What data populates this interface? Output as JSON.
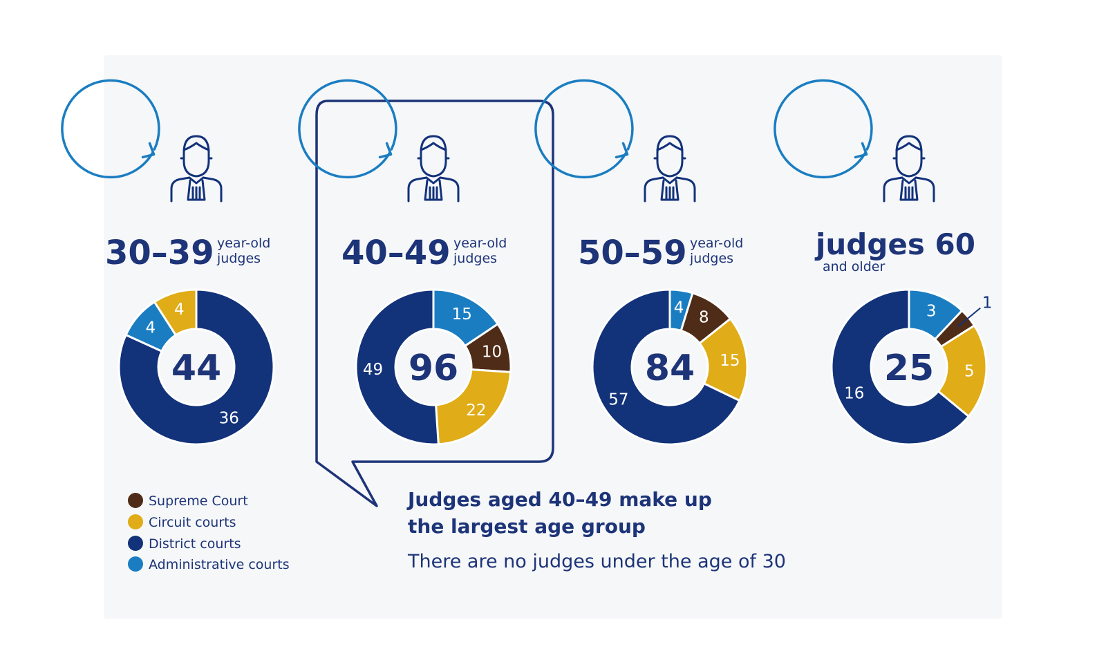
{
  "colors": {
    "supreme": "#4f2c17",
    "circuit": "#e0ac17",
    "district": "#12327a",
    "administrative": "#1a7dc2",
    "text": "#1d3478",
    "icon": "#1a7dc2"
  },
  "legend": [
    {
      "key": "supreme",
      "label": "Supreme Court"
    },
    {
      "key": "circuit",
      "label": "Circuit courts"
    },
    {
      "key": "district",
      "label": "District courts"
    },
    {
      "key": "administrative",
      "label": "Administrative courts"
    }
  ],
  "groups": [
    {
      "big": "30–39",
      "small1": "year-old",
      "small2": "judges"
    },
    {
      "big": "40–49",
      "small1": "year-old",
      "small2": "judges"
    },
    {
      "big": "50–59",
      "small1": "year-old",
      "small2": "judges"
    },
    {
      "big": "judges 60",
      "small1": "and older",
      "small2": ""
    }
  ],
  "note": {
    "line1": "Judges aged 40–49 make up",
    "line2": "the largest age group",
    "sub": "There are no judges under the age of 30"
  },
  "chart_data": [
    {
      "type": "pie",
      "category": "30–39 year-old judges",
      "total": "44",
      "slices": [
        {
          "key": "circuit",
          "label": "Circuit courts",
          "value": 4
        },
        {
          "key": "district",
          "label": "District courts",
          "value": 36
        },
        {
          "key": "administrative",
          "label": "Administrative courts",
          "value": 4
        }
      ]
    },
    {
      "type": "pie",
      "category": "40–49 year-old judges",
      "total": "96",
      "slices": [
        {
          "key": "administrative",
          "label": "Administrative courts",
          "value": 15
        },
        {
          "key": "supreme",
          "label": "Supreme Court",
          "value": 10
        },
        {
          "key": "circuit",
          "label": "Circuit courts",
          "value": 22
        },
        {
          "key": "district",
          "label": "District courts",
          "value": 49
        }
      ]
    },
    {
      "type": "pie",
      "category": "50–59 year-old judges",
      "total": "84",
      "slices": [
        {
          "key": "administrative",
          "label": "Administrative courts",
          "value": 4
        },
        {
          "key": "supreme",
          "label": "Supreme Court",
          "value": 8
        },
        {
          "key": "circuit",
          "label": "Circuit courts",
          "value": 15
        },
        {
          "key": "district",
          "label": "District courts",
          "value": 57
        }
      ]
    },
    {
      "type": "pie",
      "category": "judges 60 and older",
      "total": "25",
      "slices": [
        {
          "key": "administrative",
          "label": "Administrative courts",
          "value": 3
        },
        {
          "key": "supreme",
          "label": "Supreme Court",
          "value": 1
        },
        {
          "key": "circuit",
          "label": "Circuit courts",
          "value": 5
        },
        {
          "key": "district",
          "label": "District courts",
          "value": 16
        }
      ]
    }
  ]
}
